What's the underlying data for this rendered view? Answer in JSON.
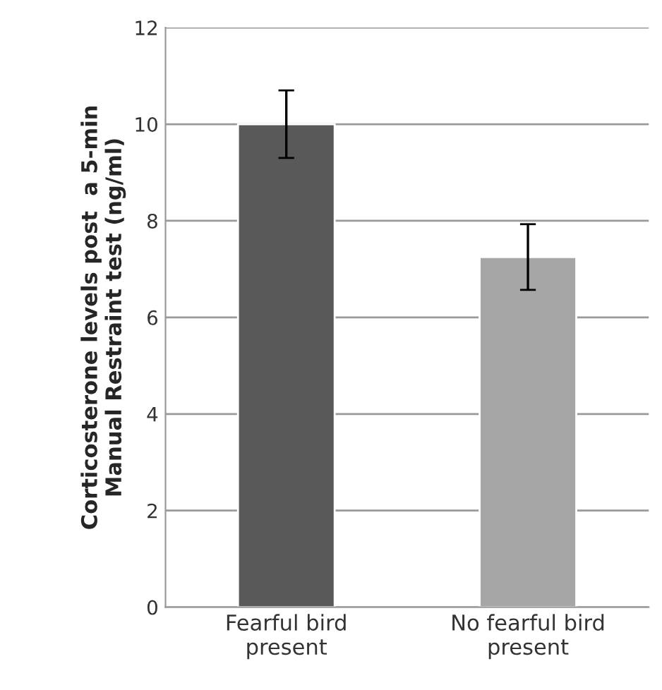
{
  "chart_data": {
    "type": "bar",
    "ylabel": "Corticosterone levels post  a 5-min\nManual Restraint test (ng/ml)",
    "categories": [
      "Fearful bird\npresent",
      "No fearful bird\npresent"
    ],
    "values": [
      10.0,
      7.25
    ],
    "errors": [
      0.7,
      0.68
    ],
    "colors": [
      "#595959",
      "#a6a6a6"
    ],
    "ylim": [
      0,
      12
    ],
    "yticks": [
      0,
      2,
      4,
      6,
      8,
      10,
      12
    ],
    "grid": "y"
  }
}
